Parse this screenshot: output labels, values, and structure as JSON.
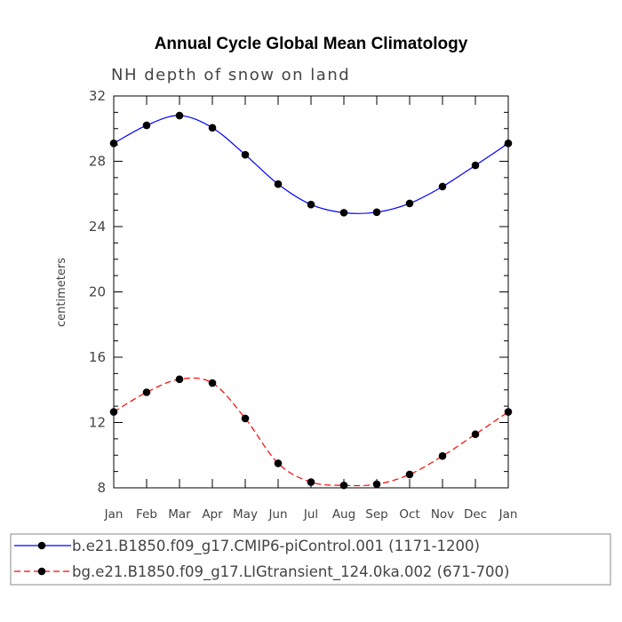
{
  "chart_data": {
    "type": "line",
    "title": "Annual Cycle Global Mean Climatology",
    "subtitle": "NH depth of snow on land",
    "xlabel": "",
    "ylabel": "centimeters",
    "ylim": [
      8,
      32
    ],
    "yticks": [
      "8",
      "12",
      "16",
      "20",
      "24",
      "28",
      "32"
    ],
    "categories": [
      "Jan",
      "Feb",
      "Mar",
      "Apr",
      "May",
      "Jun",
      "Jul",
      "Aug",
      "Sep",
      "Oct",
      "Nov",
      "Dec",
      "Jan"
    ],
    "series": [
      {
        "name": "b.e21.B1850.f09_g17.CMIP6-piControl.001 (1171-1200)",
        "color": "#0000ff",
        "dash": "solid",
        "values": [
          29.1,
          30.2,
          30.8,
          30.05,
          28.4,
          26.6,
          25.35,
          24.85,
          24.88,
          25.42,
          26.45,
          27.75,
          29.1
        ]
      },
      {
        "name": "bg.e21.B1850.f09_g17.LIGtransient_124.0ka.002 (671-700)",
        "color": "#ff0000",
        "dash": "dashed",
        "values": [
          12.65,
          13.85,
          14.65,
          14.42,
          12.25,
          9.5,
          8.35,
          8.15,
          8.22,
          8.82,
          9.95,
          11.28,
          12.65
        ]
      }
    ],
    "legend_position": "bottom"
  }
}
